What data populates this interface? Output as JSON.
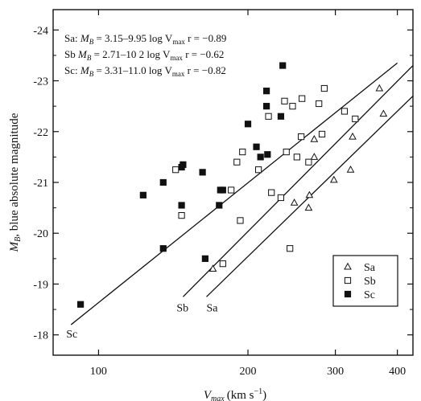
{
  "chart_data": {
    "type": "scatter",
    "title": "",
    "xlabel_main": "V",
    "xlabel_sub": "max",
    "xlabel_unit": "(km s",
    "xlabel_unit_sup": "−1",
    "xlabel_unit_close": ")",
    "ylabel_main": "M",
    "ylabel_sub": "B",
    "ylabel_rest": ", blue absolute magnitude",
    "x_scale": "log",
    "xlim": [
      81,
      430
    ],
    "ylim": [
      -24.4,
      -17.6
    ],
    "y_inverted": true,
    "x_ticks": [
      100,
      200,
      300,
      400
    ],
    "x_tick_labels": [
      "100",
      "200",
      "300",
      "400"
    ],
    "y_ticks": [
      -24,
      -23,
      -22,
      -21,
      -20,
      -19,
      -18
    ],
    "y_tick_labels": [
      "-24",
      "-23",
      "-22",
      "-21",
      "-20",
      "-19",
      "-18"
    ],
    "grid": false,
    "legend_position": "bottom-right",
    "legend": [
      {
        "key": "Sa",
        "label": "Sa",
        "marker": "open-triangle"
      },
      {
        "key": "Sb",
        "label": "Sb",
        "marker": "open-square"
      },
      {
        "key": "Sc",
        "label": "Sc",
        "marker": "filled-square"
      }
    ],
    "equations": [
      {
        "type": "Sa:",
        "pre": " M",
        "sub": "B",
        "mid": " = 3.15–9.95 log V",
        "sub2": "max",
        "post": "  r = −0.89"
      },
      {
        "type": "Sb",
        "pre": "  M",
        "sub": "B",
        "mid": " = 2.71–10 2 log V",
        "sub2": "max",
        "post": "  r = −0.62"
      },
      {
        "type": "Sc:",
        "pre": " M",
        "sub": "B",
        "mid": " = 3.31–11.0 log V",
        "sub2": "max",
        "post": "  r = −0.82"
      }
    ],
    "series": [
      {
        "name": "Sa",
        "marker": "open-triangle",
        "points": [
          [
            170,
            -19.3
          ],
          [
            248,
            -20.6
          ],
          [
            265,
            -20.5
          ],
          [
            266,
            -20.75
          ],
          [
            272,
            -21.5
          ],
          [
            272,
            -21.85
          ],
          [
            298,
            -21.05
          ],
          [
            322,
            -21.25
          ],
          [
            325,
            -21.9
          ],
          [
            368,
            -22.85
          ],
          [
            375,
            -22.35
          ]
        ]
      },
      {
        "name": "Sb",
        "marker": "open-square",
        "points": [
          [
            143,
            -21.25
          ],
          [
            147,
            -20.35
          ],
          [
            178,
            -19.4
          ],
          [
            185,
            -20.85
          ],
          [
            190,
            -21.4
          ],
          [
            193,
            -20.25
          ],
          [
            195,
            -21.6
          ],
          [
            210,
            -21.25
          ],
          [
            220,
            -22.3
          ],
          [
            223,
            -20.8
          ],
          [
            233,
            -20.7
          ],
          [
            237,
            -22.6
          ],
          [
            239,
            -21.6
          ],
          [
            243,
            -19.7
          ],
          [
            246,
            -22.5
          ],
          [
            251,
            -21.5
          ],
          [
            256,
            -21.9
          ],
          [
            257,
            -22.65
          ],
          [
            265,
            -21.4
          ],
          [
            278,
            -22.55
          ],
          [
            282,
            -21.95
          ],
          [
            285,
            -22.85
          ],
          [
            313,
            -22.4
          ],
          [
            329,
            -22.25
          ]
        ]
      },
      {
        "name": "Sc",
        "marker": "filled-square",
        "points": [
          [
            92,
            -18.6
          ],
          [
            123,
            -20.75
          ],
          [
            135,
            -21.0
          ],
          [
            135,
            -19.7
          ],
          [
            147,
            -20.55
          ],
          [
            147,
            -21.3
          ],
          [
            148,
            -21.35
          ],
          [
            162,
            -21.2
          ],
          [
            164,
            -19.5
          ],
          [
            175,
            -20.55
          ],
          [
            176,
            -20.85
          ],
          [
            178,
            -20.85
          ],
          [
            200,
            -22.15
          ],
          [
            208,
            -21.7
          ],
          [
            212,
            -21.5
          ],
          [
            218,
            -22.8
          ],
          [
            218,
            -22.5
          ],
          [
            219,
            -21.55
          ],
          [
            233,
            -22.3
          ],
          [
            235,
            -23.3
          ]
        ]
      }
    ],
    "fit_lines": [
      {
        "name": "Sc",
        "label": "Sc",
        "x": [
          88,
          400
        ],
        "y": [
          -18.2,
          -23.35
        ]
      },
      {
        "name": "Sb",
        "label": "Sb",
        "x": [
          148,
          430
        ],
        "y": [
          -18.75,
          -23.3
        ]
      },
      {
        "name": "Sa",
        "label": "Sa",
        "x": [
          165,
          430
        ],
        "y": [
          -18.75,
          -22.7
        ]
      }
    ]
  }
}
